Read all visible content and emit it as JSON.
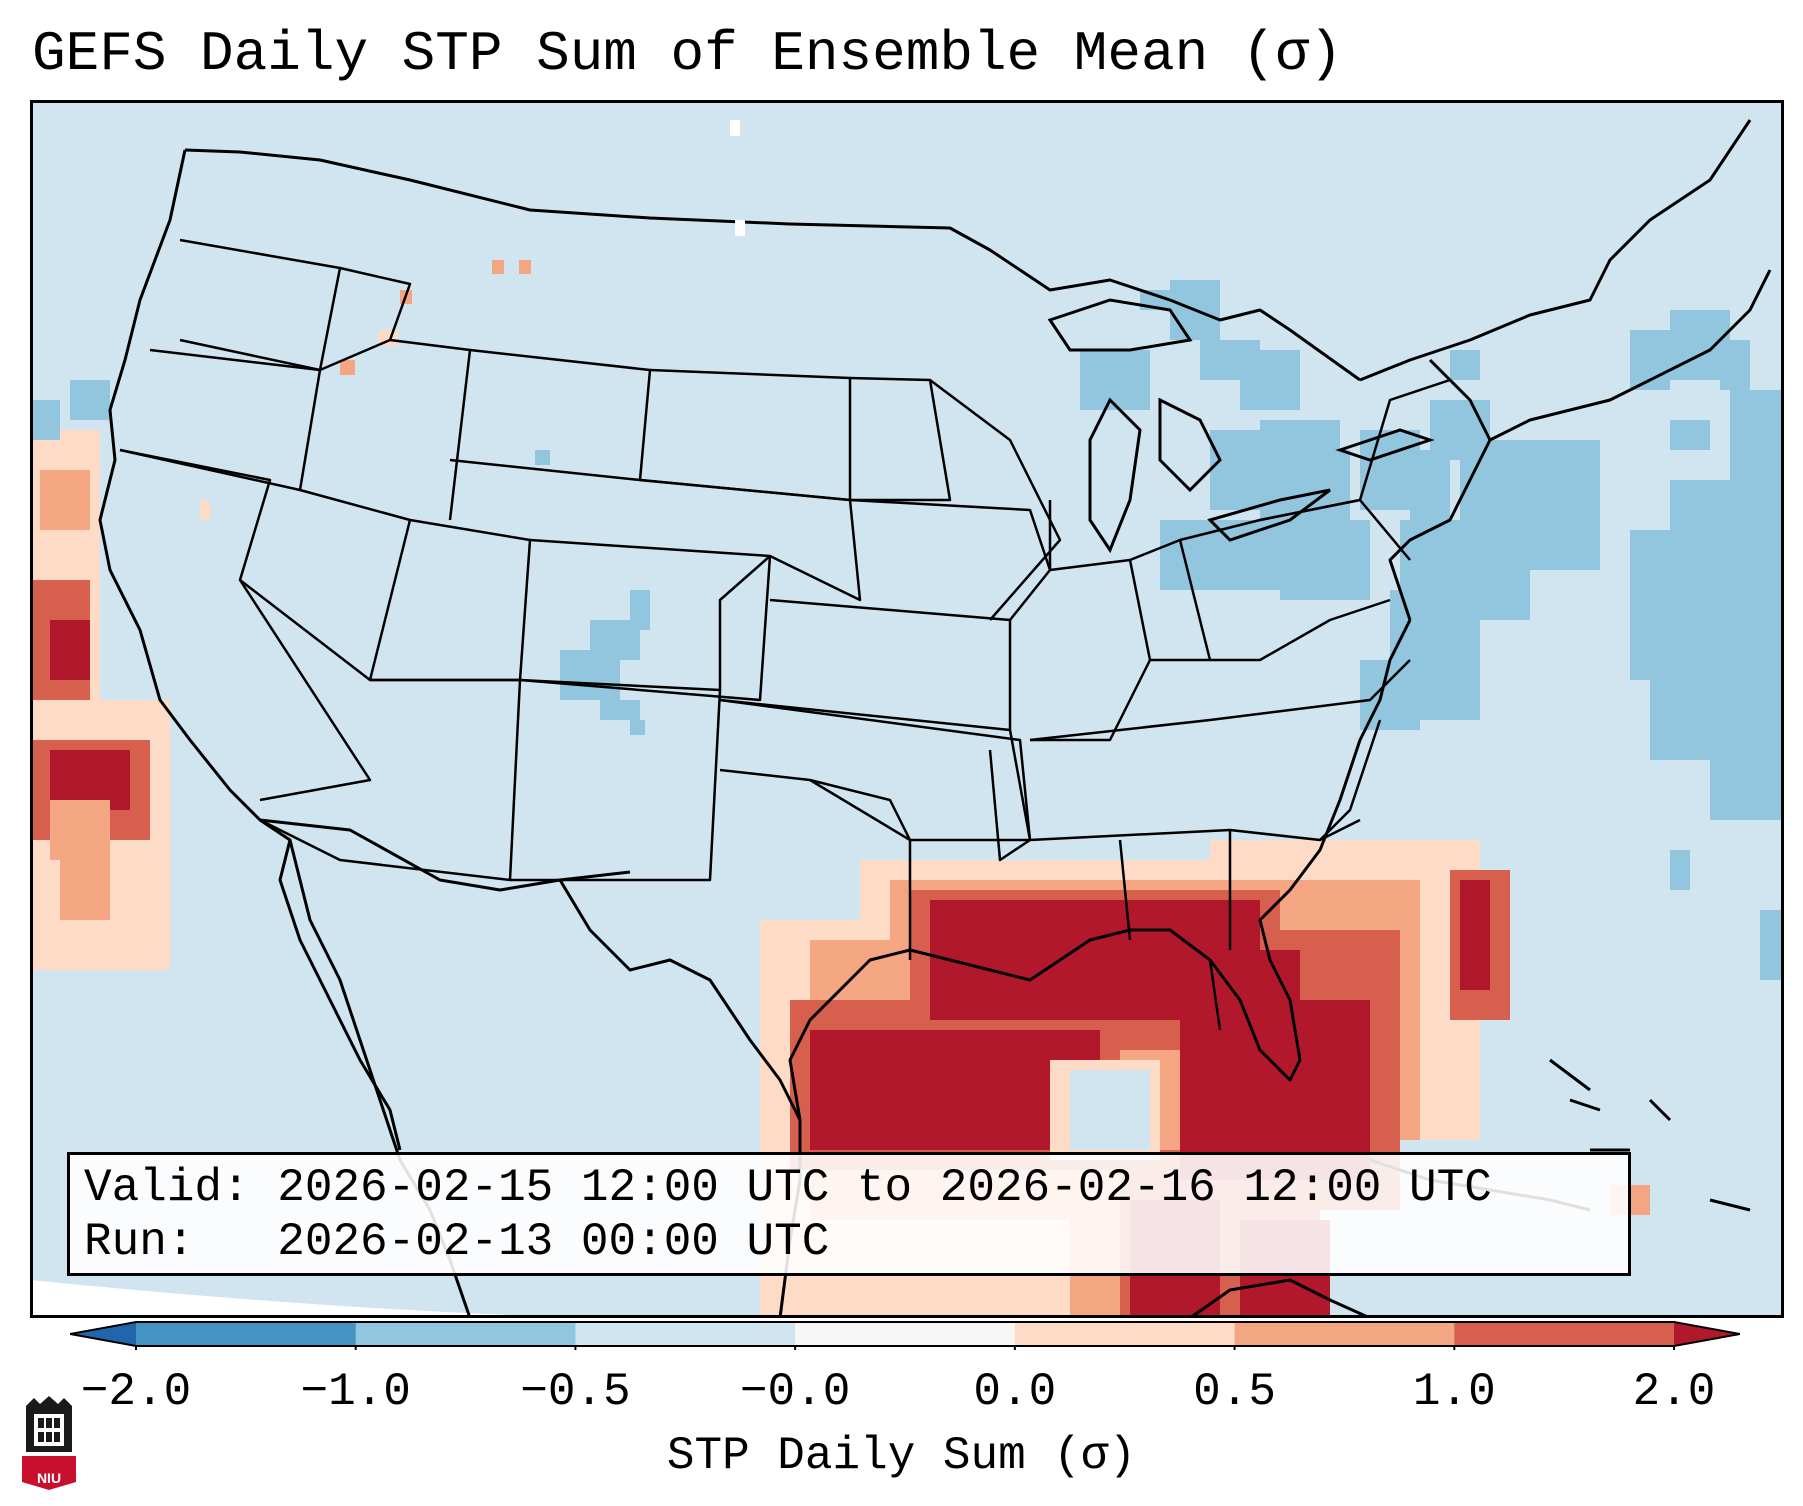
{
  "title": "GEFS Daily STP Sum of Ensemble Mean (σ)",
  "info": {
    "valid_line": "Valid: 2026-02-15 12:00 UTC to 2026-02-16 12:00 UTC",
    "run_line": "Run:   2026-02-13 00:00 UTC"
  },
  "colorbar": {
    "label": "STP Daily Sum (σ)",
    "ticks": [
      "−2.0",
      "−1.0",
      "−0.5",
      "−0.0",
      "0.0",
      "0.5",
      "1.0",
      "2.0"
    ],
    "colors": [
      "#4393c3",
      "#92c5de",
      "#d1e5f0",
      "#f7f7f7",
      "#fddbc7",
      "#f4a582",
      "#d6604d"
    ],
    "under_color": "#2166ac",
    "over_color": "#b2182b"
  },
  "map": {
    "background_color": "#d1e5f0",
    "anomalies": [
      {
        "region": "Gulf of Mexico and Gulf Coast",
        "category": "strong positive",
        "color": "#b2182b"
      },
      {
        "region": "Florida peninsula",
        "category": "positive",
        "color": "#d6604d"
      },
      {
        "region": "Pacific off California",
        "category": "positive",
        "color": "#d6604d"
      },
      {
        "region": "Great Lakes and Ohio Valley",
        "category": "negative",
        "color": "#92c5de"
      },
      {
        "region": "Western Atlantic",
        "category": "negative",
        "color": "#92c5de"
      },
      {
        "region": "Colorado",
        "category": "negative",
        "color": "#92c5de"
      }
    ]
  },
  "logo": {
    "text": "NIU"
  }
}
